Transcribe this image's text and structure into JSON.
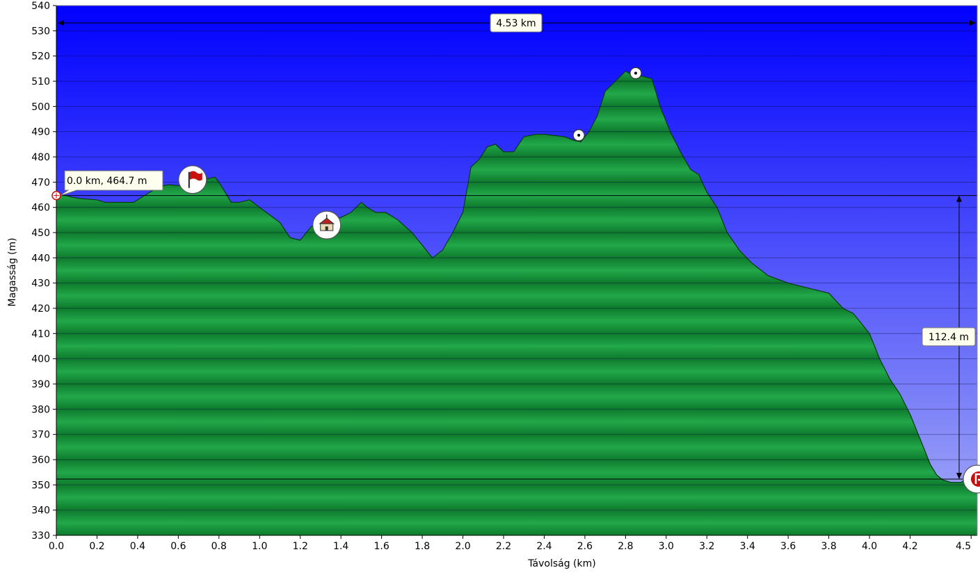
{
  "chart_data": {
    "type": "area",
    "title": "",
    "xlabel": "Távolság   (km)",
    "ylabel": "Magasság (m)",
    "xlim": [
      0,
      4.53
    ],
    "ylim": [
      330,
      540
    ],
    "xticks": [
      0.0,
      0.2,
      0.4,
      0.6,
      0.8,
      1.0,
      1.2,
      1.4,
      1.6,
      1.8,
      2.0,
      2.2,
      2.4,
      2.6,
      2.8,
      3.0,
      3.2,
      3.4,
      3.6,
      3.8,
      4.0,
      4.2,
      4.5
    ],
    "xtick_labels": [
      "0.0",
      "0.2",
      "0.4",
      "0.6",
      "0.8",
      "1.0",
      "1.2",
      "1.4",
      "1.6",
      "1.8",
      "2.0",
      "2.2",
      "2.4",
      "2.6",
      "2.8",
      "3.0",
      "3.2",
      "3.4",
      "3.6",
      "3.8",
      "4.0",
      "4.2",
      "4.5"
    ],
    "yticks": [
      330,
      340,
      350,
      360,
      370,
      380,
      390,
      400,
      410,
      420,
      430,
      440,
      450,
      460,
      470,
      480,
      490,
      500,
      510,
      520,
      530,
      540
    ],
    "grid": true,
    "series": [
      {
        "x": [
          0.0,
          0.03,
          0.08,
          0.12,
          0.2,
          0.24,
          0.3,
          0.38,
          0.42,
          0.5,
          0.55,
          0.62,
          0.68,
          0.72,
          0.78,
          0.8,
          0.86,
          0.9,
          0.95,
          1.0,
          1.05,
          1.1,
          1.15,
          1.2,
          1.25,
          1.3,
          1.35,
          1.4,
          1.45,
          1.5,
          1.53,
          1.57,
          1.62,
          1.68,
          1.75,
          1.8,
          1.85,
          1.9,
          1.95,
          2.0,
          2.04,
          2.08,
          2.12,
          2.16,
          2.2,
          2.25,
          2.3,
          2.36,
          2.4,
          2.45,
          2.5,
          2.55,
          2.58,
          2.62,
          2.66,
          2.7,
          2.75,
          2.8,
          2.84,
          2.88,
          2.93,
          2.97,
          3.02,
          3.07,
          3.12,
          3.16,
          3.2,
          3.25,
          3.3,
          3.36,
          3.42,
          3.5,
          3.6,
          3.7,
          3.8,
          3.87,
          3.92,
          4.0,
          4.05,
          4.1,
          4.15,
          4.2,
          4.25,
          4.3,
          4.33,
          4.36,
          4.4,
          4.43,
          4.45,
          4.47,
          4.53
        ],
        "values": [
          464.7,
          465,
          464,
          463.5,
          463,
          462,
          462,
          462,
          464,
          468,
          469,
          468.5,
          470,
          471,
          472,
          470,
          462,
          462,
          463,
          460,
          457,
          454,
          448,
          447,
          452,
          455,
          455,
          456,
          458,
          462,
          460,
          458,
          458,
          455,
          450,
          445,
          440,
          443,
          450,
          458,
          476,
          479,
          484,
          485,
          482,
          482,
          488,
          489,
          489,
          488.5,
          488,
          486.5,
          486,
          490,
          496,
          506,
          510,
          514,
          512,
          512,
          511,
          500,
          490,
          482,
          475,
          473,
          466,
          460,
          450,
          443,
          438,
          433,
          430,
          428,
          426,
          420,
          418,
          410,
          400,
          392,
          386,
          378,
          368,
          358,
          354,
          352,
          351,
          351,
          351,
          352,
          352
        ]
      }
    ],
    "annotations": {
      "start_point": "0.0 km, 464.7 m",
      "distance_span": "4.53 km",
      "elevation_diff": "112.4 m",
      "reference_high": 464.7,
      "reference_low": 352.3
    },
    "markers": [
      {
        "icon": "flag-icon",
        "x": 0.67,
        "y": 471
      },
      {
        "icon": "church-icon",
        "x": 1.33,
        "y": 453
      },
      {
        "icon": "waypoint-icon",
        "x": 2.57,
        "y": 488.6
      },
      {
        "icon": "waypoint-icon",
        "x": 2.85,
        "y": 513.2
      },
      {
        "icon": "parking-icon",
        "x": 4.53,
        "y": 352.3
      }
    ],
    "colors": {
      "sky_top": "#0000ff",
      "sky_bottom": "#a6adf6",
      "terrain_light": "#22a84a",
      "terrain_dark": "#0e7a2c",
      "callout_bg": "#fffff0",
      "marker_red": "#c81010"
    }
  }
}
